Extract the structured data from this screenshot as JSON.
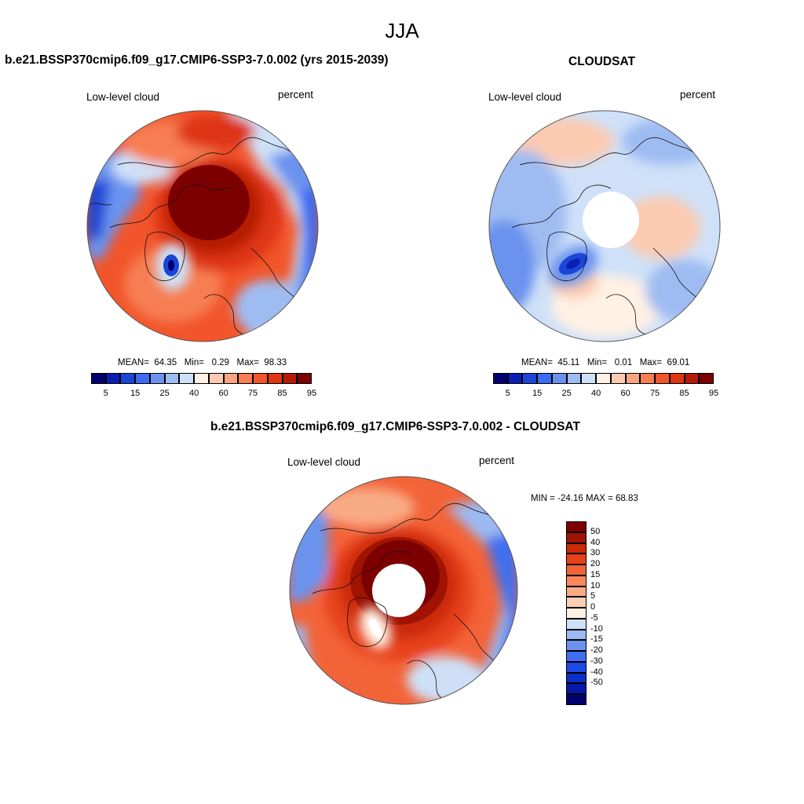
{
  "figure": {
    "title": "JJA"
  },
  "colors": {
    "abs_levels": [
      "#00006e",
      "#0b1fb5",
      "#1a46d6",
      "#3a6cf2",
      "#6b93ee",
      "#9fbcf2",
      "#cfe1f8",
      "#fff1e4",
      "#fccab0",
      "#f9a582",
      "#f77e53",
      "#f2552b",
      "#de3512",
      "#b51b04",
      "#7d0000"
    ],
    "diff_levels": [
      "#00006e",
      "#0718a8",
      "#0f2ec9",
      "#1e4ae6",
      "#3f6ff0",
      "#6b93ee",
      "#9cb9f2",
      "#cde0f8",
      "#fff1e4",
      "#fccfb4",
      "#f9ab86",
      "#f7885e",
      "#f36338",
      "#e8421a",
      "#cc2a08",
      "#a01302",
      "#7d0000"
    ]
  },
  "panels": {
    "model": {
      "title": "b.e21.BSSP370cmip6.f09_g17.CMIP6-SSP3-7.0.002 (yrs 2015-2039)",
      "left_label": "Low-level cloud",
      "right_label": "percent",
      "stats": {
        "mean_label": "MEAN=",
        "mean": "64.35",
        "min_label": "Min=",
        "min": "0.29",
        "max_label": "Max=",
        "max": "98.33"
      }
    },
    "obs": {
      "title": "CLOUDSAT",
      "left_label": "Low-level cloud",
      "right_label": "percent",
      "stats": {
        "mean_label": "MEAN=",
        "mean": "45.11",
        "min_label": "Min=",
        "min": "0.01",
        "max_label": "Max=",
        "max": "69.01"
      }
    },
    "diff": {
      "title": "b.e21.BSSP370cmip6.f09_g17.CMIP6-SSP3-7.0.002 - CLOUDSAT",
      "left_label": "Low-level cloud",
      "right_label": "percent",
      "stats": {
        "text": "MIN = -24.16 MAX =  68.83"
      }
    }
  },
  "colorbars": {
    "abs_ticks": [
      "5",
      "15",
      "25",
      "40",
      "60",
      "75",
      "85",
      "95"
    ],
    "diff_ticks": [
      "50",
      "40",
      "30",
      "20",
      "15",
      "10",
      "5",
      "0",
      "-5",
      "-10",
      "-15",
      "-20",
      "-30",
      "-40",
      "-50"
    ]
  }
}
